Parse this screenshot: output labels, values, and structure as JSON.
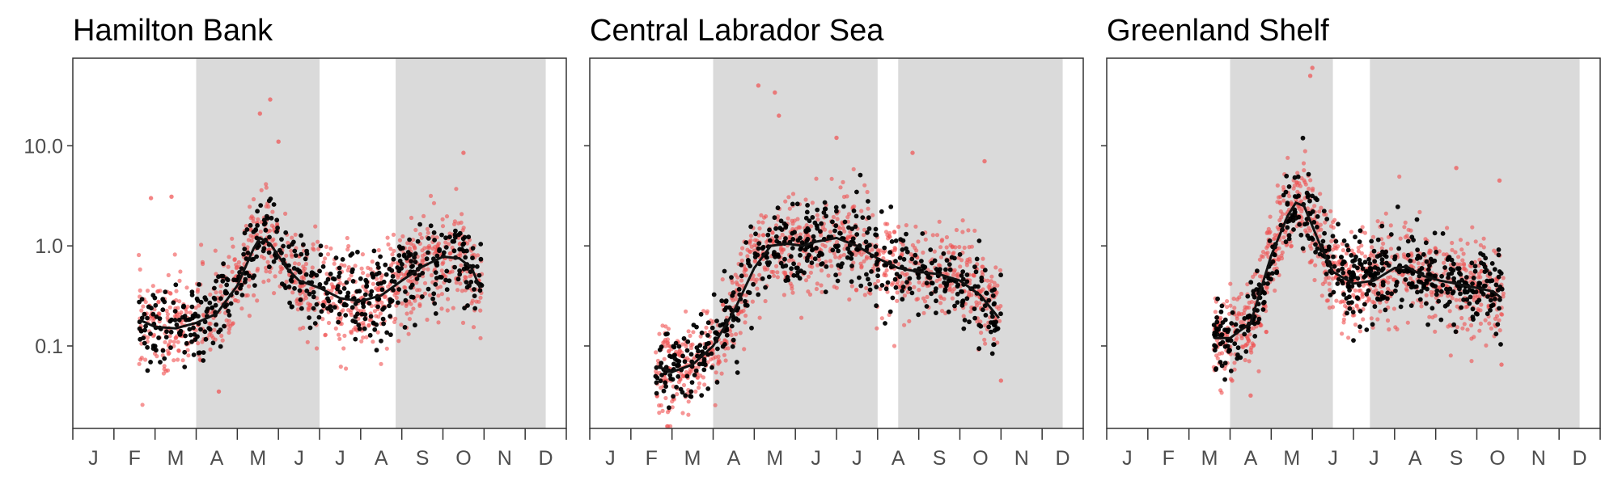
{
  "chart_data": [
    {
      "type": "scatter",
      "title": "Hamilton Bank",
      "y_scale": "log10",
      "ylim": [
        0.015,
        75
      ],
      "y_ticks": [
        0.1,
        1.0,
        10.0
      ],
      "y_tick_labels": [
        "0.1",
        "1.0",
        "10.0"
      ],
      "x_tick_labels": [
        "J",
        "F",
        "M",
        "A",
        "M",
        "J",
        "J",
        "A",
        "S",
        "O",
        "N",
        "D"
      ],
      "shaded_month_ranges": [
        [
          3.0,
          6.0
        ],
        [
          7.85,
          11.5
        ]
      ],
      "smooth_line": [
        [
          1.15,
          0.18
        ],
        [
          1.5,
          0.155
        ],
        [
          2.0,
          0.15
        ],
        [
          2.5,
          0.17
        ],
        [
          3.0,
          0.21
        ],
        [
          3.5,
          0.4
        ],
        [
          3.9,
          0.95
        ],
        [
          4.05,
          1.2
        ],
        [
          4.3,
          1.05
        ],
        [
          4.7,
          0.6
        ],
        [
          5.0,
          0.45
        ],
        [
          5.5,
          0.38
        ],
        [
          6.0,
          0.3
        ],
        [
          6.5,
          0.28
        ],
        [
          7.0,
          0.32
        ],
        [
          7.5,
          0.45
        ],
        [
          8.0,
          0.62
        ],
        [
          8.5,
          0.78
        ],
        [
          8.9,
          0.75
        ],
        [
          9.2,
          0.6
        ],
        [
          9.4,
          0.38
        ]
      ],
      "series": [
        {
          "name": "",
          "color": "#f05050",
          "x_range": [
            1.1,
            9.45
          ],
          "values_at_smooth_spread": 0.5
        },
        {
          "name": "",
          "color": "#000000",
          "x_range": [
            1.1,
            9.45
          ],
          "values_at_smooth_spread": 0.3
        }
      ],
      "outliers": [
        [
          4.3,
          29.0
        ],
        [
          4.05,
          21.0
        ],
        [
          1.4,
          3.0
        ],
        [
          9.0,
          8.5
        ],
        [
          3.05,
          0.035
        ],
        [
          4.5,
          11.0
        ],
        [
          1.9,
          3.1
        ]
      ]
    },
    {
      "type": "scatter",
      "title": "Central Labrador Sea",
      "y_scale": "log10",
      "ylim": [
        0.015,
        75
      ],
      "y_ticks": [
        0.1,
        1.0,
        10.0
      ],
      "y_tick_labels": [
        "0.1",
        "1.0",
        "10.0"
      ],
      "x_tick_labels": [
        "J",
        "F",
        "M",
        "A",
        "M",
        "J",
        "J",
        "A",
        "S",
        "O",
        "N",
        "D"
      ],
      "shaded_month_ranges": [
        [
          3.0,
          7.0
        ],
        [
          7.5,
          11.5
        ]
      ],
      "smooth_line": [
        [
          1.15,
          0.062
        ],
        [
          1.5,
          0.055
        ],
        [
          2.0,
          0.065
        ],
        [
          2.5,
          0.1
        ],
        [
          3.0,
          0.22
        ],
        [
          3.5,
          0.6
        ],
        [
          3.9,
          1.0
        ],
        [
          4.3,
          1.05
        ],
        [
          4.7,
          1.0
        ],
        [
          5.0,
          1.1
        ],
        [
          5.5,
          1.2
        ],
        [
          6.0,
          1.0
        ],
        [
          6.5,
          0.75
        ],
        [
          7.0,
          0.6
        ],
        [
          7.5,
          0.55
        ],
        [
          8.0,
          0.52
        ],
        [
          8.5,
          0.45
        ],
        [
          9.0,
          0.32
        ],
        [
          9.45,
          0.19
        ]
      ],
      "series": [
        {
          "name": "",
          "color": "#f05050",
          "x_range": [
            1.1,
            9.5
          ],
          "values_at_smooth_spread": 0.5
        },
        {
          "name": "",
          "color": "#000000",
          "x_range": [
            1.1,
            9.5
          ],
          "values_at_smooth_spread": 0.3
        }
      ],
      "outliers": [
        [
          3.6,
          40.0
        ],
        [
          4.0,
          34.0
        ],
        [
          4.1,
          20.0
        ],
        [
          7.35,
          8.5
        ],
        [
          9.1,
          7.0
        ],
        [
          5.5,
          12.0
        ],
        [
          9.5,
          0.045
        ]
      ]
    },
    {
      "type": "scatter",
      "title": "Greenland Shelf",
      "y_scale": "log10",
      "ylim": [
        0.015,
        75
      ],
      "y_ticks": [
        0.1,
        1.0,
        10.0
      ],
      "y_tick_labels": [
        "0.1",
        "1.0",
        "10.0"
      ],
      "x_tick_labels": [
        "J",
        "F",
        "M",
        "A",
        "M",
        "J",
        "J",
        "A",
        "S",
        "O",
        "N",
        "D"
      ],
      "shaded_month_ranges": [
        [
          3.0,
          5.5
        ],
        [
          6.4,
          11.5
        ]
      ],
      "smooth_line": [
        [
          2.15,
          0.12
        ],
        [
          2.5,
          0.12
        ],
        [
          3.0,
          0.17
        ],
        [
          3.5,
          0.8
        ],
        [
          3.9,
          2.0
        ],
        [
          4.1,
          2.7
        ],
        [
          4.3,
          2.5
        ],
        [
          4.7,
          1.0
        ],
        [
          5.0,
          0.55
        ],
        [
          5.5,
          0.42
        ],
        [
          6.0,
          0.45
        ],
        [
          6.5,
          0.6
        ],
        [
          6.8,
          0.62
        ],
        [
          7.2,
          0.5
        ],
        [
          7.6,
          0.45
        ],
        [
          8.0,
          0.42
        ],
        [
          8.5,
          0.38
        ],
        [
          8.9,
          0.35
        ],
        [
          9.1,
          0.3
        ]
      ],
      "series": [
        {
          "name": "",
          "color": "#f05050",
          "x_range": [
            2.1,
            9.15
          ],
          "values_at_smooth_spread": 0.45
        },
        {
          "name": "",
          "color": "#000000",
          "x_range": [
            2.1,
            9.15
          ],
          "values_at_smooth_spread": 0.35
        }
      ],
      "outliers": [
        [
          4.5,
          60.0
        ],
        [
          4.45,
          50.0
        ],
        [
          8.0,
          6.0
        ],
        [
          9.05,
          4.5
        ],
        [
          3.0,
          0.032
        ],
        [
          2.55,
          0.045
        ],
        [
          9.1,
          0.065
        ]
      ]
    }
  ]
}
